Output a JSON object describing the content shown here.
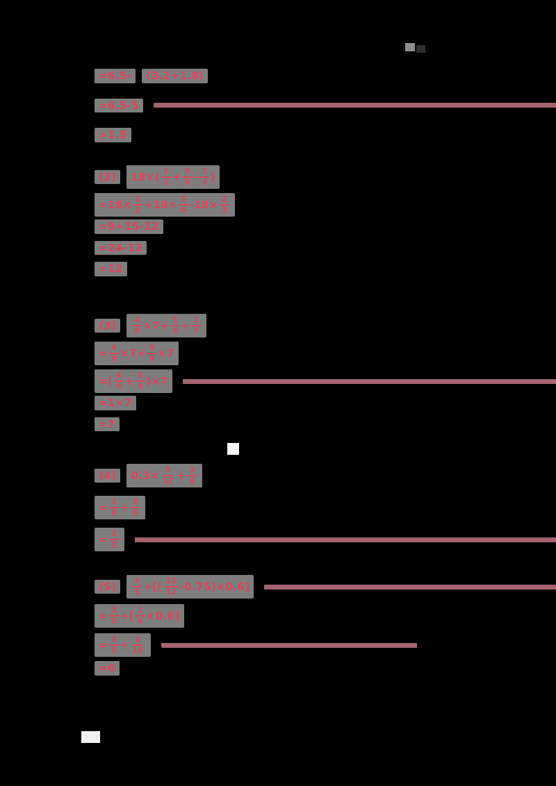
{
  "page": {
    "background_color": "#000000",
    "ink_color": "#de4459",
    "highlight_color": "#7d7d7d",
    "bar_color": "#a5646e"
  },
  "solutions": {
    "sections": [
      {
        "id": "1",
        "lines": [
          {
            "chunks": [
              [
                {
                  "t": "txt",
                  "v": "=6.5-"
                }
              ],
              [
                {
                  "t": "txt",
                  "v": "(3.2+1.8)"
                }
              ]
            ],
            "bar": null
          },
          {
            "chunks": [
              [
                {
                  "t": "txt",
                  "v": "=6.5-5"
                }
              ]
            ],
            "bar": "full"
          },
          {
            "chunks": [
              [
                {
                  "t": "txt",
                  "v": "=1.5"
                }
              ]
            ],
            "bar": null
          }
        ]
      },
      {
        "id": "2",
        "lines": [
          {
            "chunks": [
              [
                {
                  "t": "txt",
                  "v": "(2)"
                }
              ],
              [
                {
                  "t": "txt",
                  "v": "18×("
                },
                {
                  "t": "frac",
                  "n": "1",
                  "d": "2"
                },
                {
                  "t": "txt",
                  "v": "+"
                },
                {
                  "t": "frac",
                  "n": "5",
                  "d": "6"
                },
                {
                  "t": "txt",
                  "v": "-"
                },
                {
                  "t": "frac",
                  "n": "2",
                  "d": "3"
                },
                {
                  "t": "txt",
                  "v": ")"
                }
              ]
            ],
            "bar": null
          },
          {
            "chunks": [
              [
                {
                  "t": "txt",
                  "v": "=18×"
                },
                {
                  "t": "frac",
                  "n": "1",
                  "d": "2"
                },
                {
                  "t": "txt",
                  "v": "+18×"
                },
                {
                  "t": "frac",
                  "n": "5",
                  "d": "6"
                },
                {
                  "t": "txt",
                  "v": "-18×"
                },
                {
                  "t": "frac",
                  "n": "2",
                  "d": "3"
                }
              ]
            ],
            "bar": null
          },
          {
            "chunks": [
              [
                {
                  "t": "txt",
                  "v": "=9+15-12"
                }
              ]
            ],
            "bar": null
          },
          {
            "chunks": [
              [
                {
                  "t": "txt",
                  "v": "=24-12"
                }
              ]
            ],
            "bar": null
          },
          {
            "chunks": [
              [
                {
                  "t": "txt",
                  "v": "=12"
                }
              ]
            ],
            "bar": null
          }
        ]
      },
      {
        "id": "3",
        "lines": [
          {
            "chunks": [
              [
                {
                  "t": "txt",
                  "v": "(3)"
                }
              ],
              [
                {
                  "t": "frac",
                  "n": "4",
                  "d": "9"
                },
                {
                  "t": "txt",
                  "v": "×7+"
                },
                {
                  "t": "frac",
                  "n": "5",
                  "d": "9"
                },
                {
                  "t": "txt",
                  "v": "÷"
                },
                {
                  "t": "frac",
                  "n": "1",
                  "d": "7"
                }
              ]
            ],
            "bar": null
          },
          {
            "chunks": [
              [
                {
                  "t": "txt",
                  "v": "="
                },
                {
                  "t": "frac",
                  "n": "4",
                  "d": "9"
                },
                {
                  "t": "txt",
                  "v": "×7+"
                },
                {
                  "t": "frac",
                  "n": "5",
                  "d": "9"
                },
                {
                  "t": "txt",
                  "v": "×7"
                }
              ]
            ],
            "bar": null
          },
          {
            "chunks": [
              [
                {
                  "t": "txt",
                  "v": "=("
                },
                {
                  "t": "frac",
                  "n": "4",
                  "d": "9"
                },
                {
                  "t": "txt",
                  "v": "+"
                },
                {
                  "t": "frac",
                  "n": "5",
                  "d": "9"
                },
                {
                  "t": "txt",
                  "v": ")×7"
                }
              ]
            ],
            "bar": "full"
          },
          {
            "chunks": [
              [
                {
                  "t": "txt",
                  "v": "=1×7"
                }
              ]
            ],
            "bar": null
          },
          {
            "chunks": [
              [
                {
                  "t": "txt",
                  "v": "=7"
                }
              ]
            ],
            "bar": null
          }
        ]
      },
      {
        "id": "4",
        "lines": [
          {
            "chunks": [
              [
                {
                  "t": "txt",
                  "v": "(4)"
                }
              ],
              [
                {
                  "t": "txt",
                  "v": "0.3×"
                },
                {
                  "t": "frac",
                  "n": "5",
                  "d": "12"
                },
                {
                  "t": "txt",
                  "v": "+"
                },
                {
                  "t": "frac",
                  "n": "3",
                  "d": "8"
                }
              ]
            ],
            "bar": null
          },
          {
            "chunks": [
              [
                {
                  "t": "txt",
                  "v": "="
                },
                {
                  "t": "frac",
                  "n": "1",
                  "d": "8"
                },
                {
                  "t": "txt",
                  "v": "+"
                },
                {
                  "t": "frac",
                  "n": "3",
                  "d": "8"
                }
              ]
            ],
            "bar": null
          },
          {
            "chunks": [
              [
                {
                  "t": "txt",
                  "v": "="
                },
                {
                  "t": "frac",
                  "n": "1",
                  "d": "2"
                }
              ]
            ],
            "bar": "full"
          }
        ]
      },
      {
        "id": "5",
        "lines": [
          {
            "chunks": [
              [
                {
                  "t": "txt",
                  "v": "(5)"
                }
              ],
              [
                {
                  "t": "frac",
                  "n": "3",
                  "d": "5"
                },
                {
                  "t": "txt",
                  "v": "÷[("
                },
                {
                  "t": "frac",
                  "n": "11",
                  "d": "12"
                },
                {
                  "t": "txt",
                  "v": "-0.75)×0.6]"
                }
              ]
            ],
            "bar": "full"
          },
          {
            "chunks": [
              [
                {
                  "t": "txt",
                  "v": "="
                },
                {
                  "t": "frac",
                  "n": "3",
                  "d": "5"
                },
                {
                  "t": "txt",
                  "v": "÷["
                },
                {
                  "t": "frac",
                  "n": "1",
                  "d": "6"
                },
                {
                  "t": "txt",
                  "v": "×0.6]"
                }
              ]
            ],
            "bar": null
          },
          {
            "chunks": [
              [
                {
                  "t": "txt",
                  "v": "="
                },
                {
                  "t": "frac",
                  "n": "3",
                  "d": "5"
                },
                {
                  "t": "txt",
                  "v": "÷"
                },
                {
                  "t": "frac",
                  "n": "1",
                  "d": "10"
                }
              ]
            ],
            "bar": 368
          },
          {
            "chunks": [
              [
                {
                  "t": "txt",
                  "v": "=6"
                }
              ]
            ],
            "bar": null
          }
        ]
      }
    ]
  }
}
